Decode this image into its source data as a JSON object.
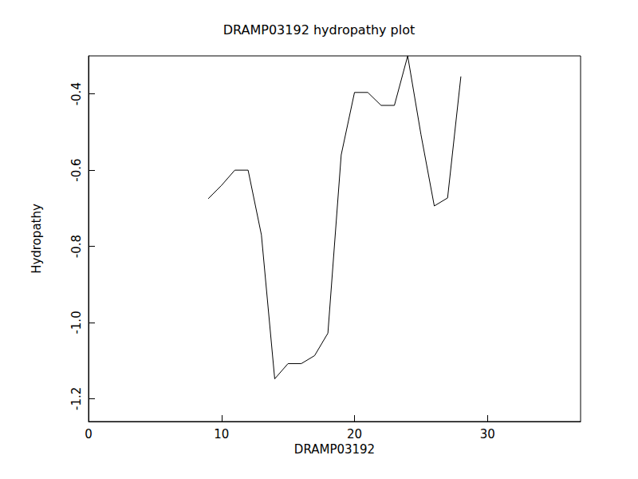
{
  "chart_data": {
    "type": "line",
    "title": "DRAMP03192 hydropathy plot",
    "x_label": "DRAMP03192",
    "y_label": "Hydropathy",
    "x": [
      9,
      10,
      11,
      12,
      13,
      14,
      15,
      16,
      17,
      18,
      19,
      20,
      21,
      22,
      23,
      24,
      25,
      26,
      27,
      28
    ],
    "values": [
      -0.675,
      -0.64,
      -0.6,
      -0.6,
      -0.77,
      -1.148,
      -1.108,
      -1.108,
      -1.087,
      -1.028,
      -0.56,
      -0.396,
      -0.396,
      -0.43,
      -0.43,
      -0.3,
      -0.507,
      -0.694,
      -0.673,
      -0.354
    ],
    "color": "#000000",
    "xlim": [
      0,
      37
    ],
    "xticks": [
      0,
      10,
      20,
      30
    ],
    "ylim": [
      -1.26,
      -0.3
    ],
    "yticks": [
      -1.2,
      -1.0,
      -0.8,
      -0.6,
      -0.4
    ],
    "grid": false
  }
}
